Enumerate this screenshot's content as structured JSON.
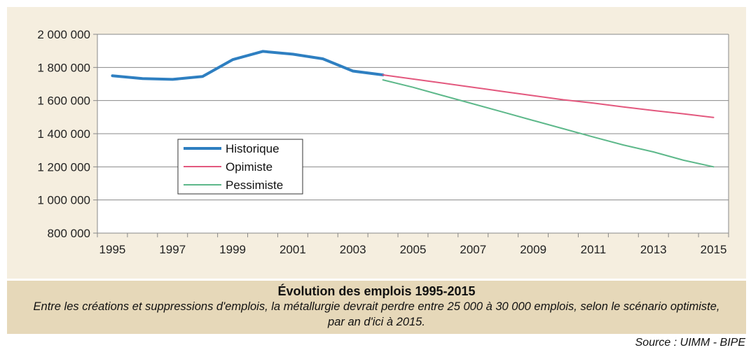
{
  "chart_data": {
    "type": "line",
    "title": "",
    "xlabel": "",
    "ylabel": "",
    "ylim": [
      800000,
      2000000
    ],
    "xlim": [
      1995,
      2015
    ],
    "y_ticks": [
      800000,
      1000000,
      1200000,
      1400000,
      1600000,
      1800000,
      2000000
    ],
    "y_tick_labels": [
      "800 000",
      "1 000 000",
      "1 200 000",
      "1 400 000",
      "1 600 000",
      "1 800 000",
      "2 000 000"
    ],
    "x_tick_labels": [
      "1995",
      "1997",
      "1999",
      "2001",
      "2003",
      "2005",
      "2007",
      "2009",
      "2011",
      "2013",
      "2015"
    ],
    "x_categories": [
      1995,
      1996,
      1997,
      1998,
      1999,
      2000,
      2001,
      2002,
      2003,
      2004,
      2005,
      2006,
      2007,
      2008,
      2009,
      2010,
      2011,
      2012,
      2013,
      2014,
      2015
    ],
    "grid": "horizontal",
    "legend_position": "left",
    "series": [
      {
        "name": "Historique",
        "color": "#2e7fc1",
        "x": [
          1995,
          1996,
          1997,
          1998,
          1999,
          2000,
          2001,
          2002,
          2003,
          2004
        ],
        "values": [
          1750000,
          1733000,
          1728000,
          1745000,
          1847000,
          1897000,
          1880000,
          1852000,
          1778000,
          1755000
        ]
      },
      {
        "name": "Opimiste",
        "color": "#e3587e",
        "x": [
          2004,
          2005,
          2006,
          2007,
          2008,
          2009,
          2010,
          2011,
          2012,
          2013,
          2014,
          2015
        ],
        "values": [
          1755000,
          1730000,
          1705000,
          1680000,
          1655000,
          1630000,
          1605000,
          1585000,
          1562000,
          1540000,
          1520000,
          1498000
        ]
      },
      {
        "name": "Pessimiste",
        "color": "#5db88a",
        "x": [
          2004,
          2005,
          2006,
          2007,
          2008,
          2009,
          2010,
          2011,
          2012,
          2013,
          2014,
          2015
        ],
        "values": [
          1725000,
          1680000,
          1630000,
          1580000,
          1530000,
          1480000,
          1430000,
          1380000,
          1332000,
          1290000,
          1240000,
          1200000
        ]
      }
    ]
  },
  "caption": {
    "title": "Évolution des emplois 1995-2015",
    "text": "Entre les créations et suppressions d'emplois, la métallurgie devrait perdre entre 25 000 à 30 000 emplois, selon le scénario optimiste, par an d'ici à 2015."
  },
  "source": "Source :  UIMM - BIPE"
}
